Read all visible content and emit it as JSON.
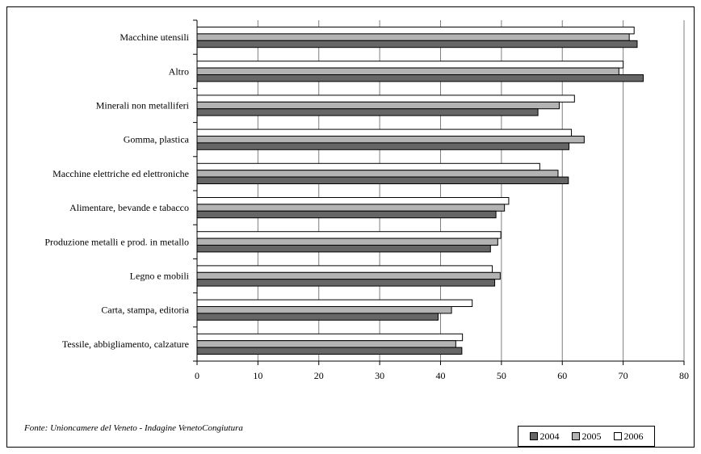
{
  "chart_data": {
    "type": "bar",
    "orientation": "horizontal",
    "categories": [
      "Macchine utensili",
      "Altro",
      "Minerali non metalliferi",
      "Gomma, plastica",
      "Macchine elettriche ed elettroniche",
      "Alimentare, bevande e tabacco",
      "Produzione metalli e prod. in metallo",
      "Legno e mobili",
      "Carta, stampa, editoria",
      "Tessile, abbigliamento, calzature"
    ],
    "series": [
      {
        "name": "2006",
        "color": "#ffffff",
        "values": [
          71.8,
          70.0,
          62.0,
          61.5,
          56.3,
          51.2,
          49.9,
          48.5,
          45.2,
          43.6
        ]
      },
      {
        "name": "2005",
        "color": "#b3b3b3",
        "values": [
          71.0,
          69.3,
          59.5,
          63.6,
          59.3,
          50.5,
          49.4,
          49.8,
          41.8,
          42.5
        ]
      },
      {
        "name": "2004",
        "color": "#666666",
        "values": [
          72.3,
          73.3,
          56.0,
          61.1,
          61.0,
          49.1,
          48.2,
          48.9,
          39.6,
          43.5
        ]
      }
    ],
    "xlim": [
      0,
      80
    ],
    "xticks": [
      0,
      10,
      20,
      30,
      40,
      50,
      60,
      70,
      80
    ],
    "grid": "vertical",
    "legend": {
      "placement": "bottom-right",
      "order": [
        "2004",
        "2005",
        "2006"
      ]
    },
    "title": "",
    "xlabel": "",
    "ylabel": ""
  },
  "source_note": "Fonte: Unioncamere del Veneto - Indagine VenetoCongiutura"
}
